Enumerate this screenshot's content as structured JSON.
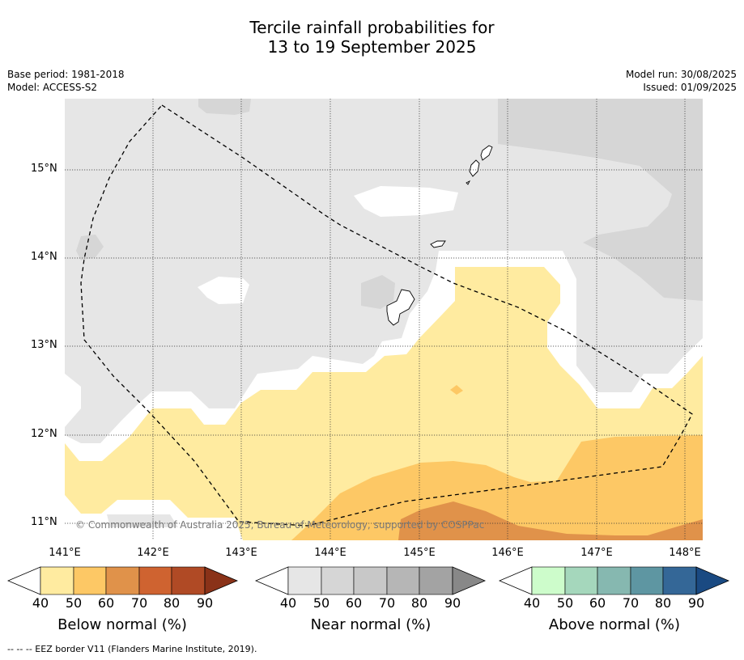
{
  "title_line1": "Tercile rainfall probabilities for",
  "title_line2": "13 to 19 September 2025",
  "meta_left": [
    "Base period: 1981-2018",
    "Model: ACCESS-S2"
  ],
  "meta_right": [
    "Model run: 30/08/2025",
    "Issued: 01/09/2025"
  ],
  "latitudes": [
    "15°N",
    "14°N",
    "13°N",
    "12°N",
    "11°N"
  ],
  "longitudes": [
    "141°E",
    "142°E",
    "143°E",
    "144°E",
    "145°E",
    "146°E",
    "147°E",
    "148°E"
  ],
  "copyright": "© Commonwealth of Australia 2025, Bureau of Meteorology, supported by COSPPac",
  "colorbars": [
    {
      "title": "Below normal (%)",
      "ticks": [
        "40",
        "50",
        "60",
        "70",
        "80",
        "90"
      ],
      "colors": [
        "#ffeba0",
        "#fdc865",
        "#e0924a",
        "#cf6330",
        "#b04a25",
        "#8a3218"
      ]
    },
    {
      "title": "Near normal (%)",
      "ticks": [
        "40",
        "50",
        "60",
        "70",
        "80",
        "90"
      ],
      "colors": [
        "#e6e6e6",
        "#d6d6d6",
        "#c8c8c8",
        "#b6b6b6",
        "#a3a3a3",
        "#888888"
      ]
    },
    {
      "title": "Above normal (%)",
      "ticks": [
        "40",
        "50",
        "60",
        "70",
        "80",
        "90"
      ],
      "colors": [
        "#cdfccb",
        "#a5d7bc",
        "#86b8b0",
        "#5e96a2",
        "#346797",
        "#1a4a82"
      ]
    }
  ],
  "footnote": "--  --  -- EEZ border V11 (Flanders Marine Institute, 2019).",
  "map_colors": {
    "near_40": "#e6e6e6",
    "near_50": "#d6d6d6",
    "below_40": "#ffeba0",
    "below_50": "#fdc865",
    "below_60": "#e0924a"
  }
}
